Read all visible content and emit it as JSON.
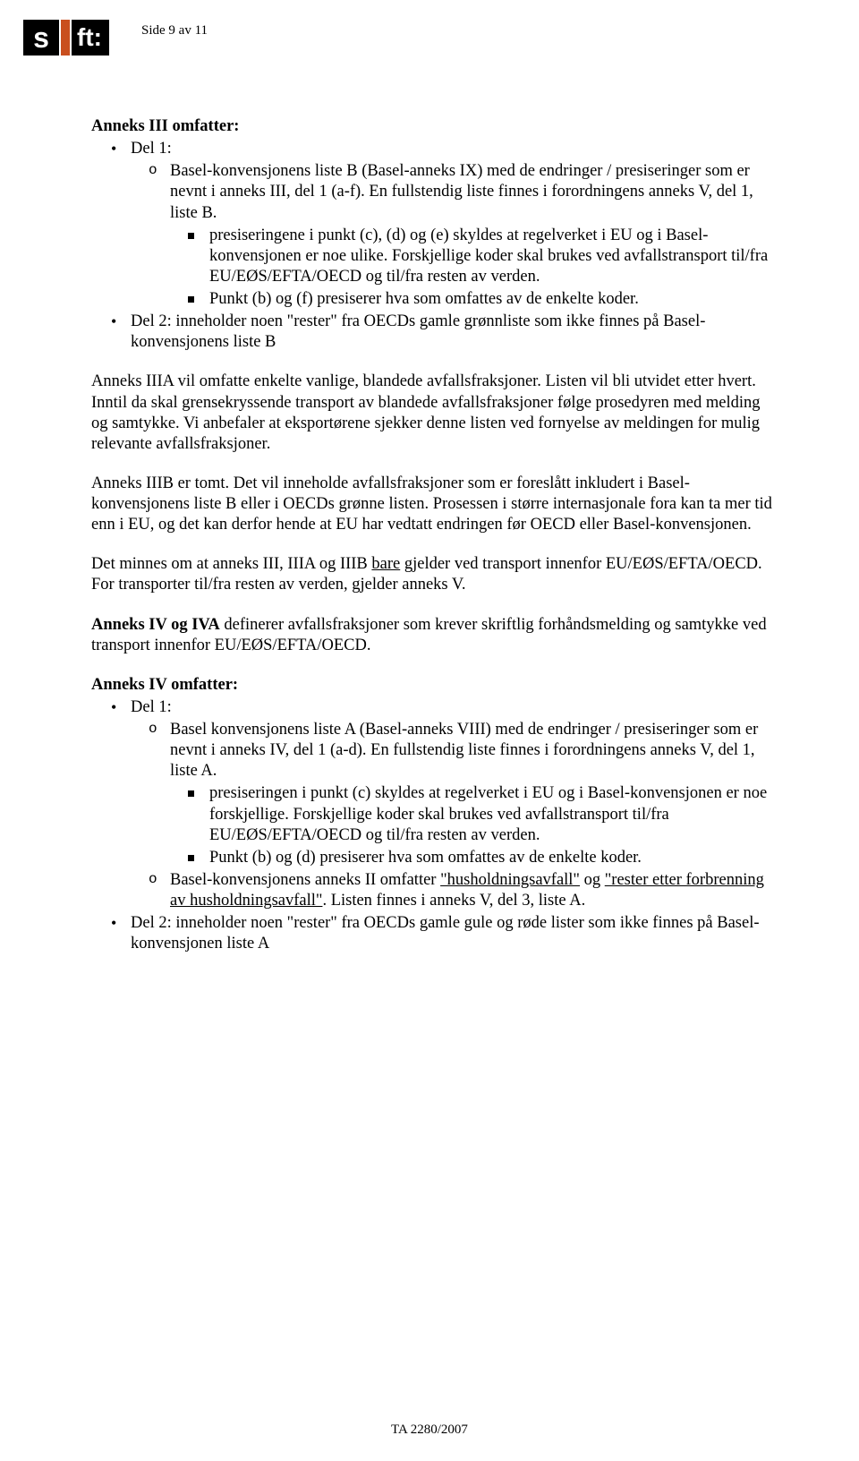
{
  "logo": {
    "s": "s",
    "ft": "ft:"
  },
  "page_header": "Side 9 av 11",
  "h1": "Anneks III omfatter:",
  "l1_del1": "Del 1:",
  "l2_a": "Basel-konvensjonens liste B (Basel-anneks IX) med de endringer / presiseringer som er nevnt i anneks III, del 1 (a-f). En fullstendig liste finnes i forordningens anneks V, del 1, liste B.",
  "l3_a1": "presiseringene i punkt (c), (d) og (e) skyldes at regelverket i EU og i Basel-konvensjonen er noe ulike. Forskjellige koder skal brukes ved avfallstransport til/fra EU/EØS/EFTA/OECD og til/fra resten av verden.",
  "l3_a2": "Punkt (b) og (f) presiserer hva som omfattes av de enkelte koder.",
  "l1_del2": "Del 2: inneholder noen \"rester\" fra OECDs gamle grønnliste som ikke finnes på Basel-konvensjonens liste B",
  "p1": "Anneks IIIA vil omfatte enkelte vanlige, blandede avfallsfraksjoner. Listen vil bli utvidet etter hvert. Inntil da skal grensekryssende transport av blandede avfallsfraksjoner følge prosedyren med melding og samtykke. Vi anbefaler at eksportørene sjekker denne listen ved fornyelse av meldingen for mulig relevante avfallsfraksjoner.",
  "p2": "Anneks IIIB er tomt. Det vil inneholde avfallsfraksjoner som er foreslått inkludert i Basel-konvensjonens liste B eller i OECDs grønne listen. Prosessen i større internasjonale fora kan ta mer tid enn i EU, og det kan derfor hende at EU har vedtatt endringen før OECD eller Basel-konvensjonen.",
  "p3_a": "Det minnes om at anneks III, IIIA og IIIB ",
  "p3_u": "bare",
  "p3_b": " gjelder ved transport innenfor EU/EØS/EFTA/OECD. For transporter til/fra resten av verden, gjelder anneks V.",
  "p4_b": "Anneks IV og IVA",
  "p4_rest": " definerer avfallsfraksjoner som krever skriftlig forhåndsmelding og samtykke ved transport innenfor EU/EØS/EFTA/OECD.",
  "h2": "Anneks IV omfatter:",
  "b_l1_del1": "Del 1:",
  "b_l2_a": "Basel konvensjonens liste A (Basel-anneks VIII) med de endringer / presiseringer som er nevnt i anneks IV, del 1 (a-d). En fullstendig liste finnes i forordningens anneks V, del 1, liste A.",
  "b_l3_a1": "presiseringen i punkt (c) skyldes at regelverket i EU og i Basel-konvensjonen er noe forskjellige. Forskjellige koder skal brukes ved avfallstransport til/fra EU/EØS/EFTA/OECD og til/fra resten av verden.",
  "b_l3_a2": "Punkt (b) og (d) presiserer hva som omfattes av de enkelte koder.",
  "b_l2_b_a": "Basel-konvensjonens anneks II omfatter ",
  "b_l2_b_u1": "\"husholdningsavfall\"",
  "b_l2_b_mid": " og ",
  "b_l2_b_u2": "\"rester etter forbrenning av husholdningsavfall\"",
  "b_l2_b_end": ". Listen finnes i anneks V, del 3, liste A.",
  "b_l1_del2": "Del 2: inneholder noen \"rester\" fra OECDs gamle gule og røde lister som ikke finnes på Basel-konvensjonen liste A",
  "footer": "TA 2280/2007"
}
